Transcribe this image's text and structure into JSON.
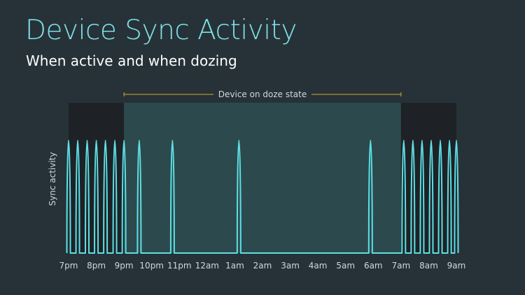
{
  "header": {
    "title": "Device Sync Activity",
    "subtitle": "When active and when dozing"
  },
  "colors": {
    "background": "#263238",
    "title": "#7fe0e6",
    "line": "#5ce0e6",
    "active_band": "#1e2226",
    "doze_band": "#2c4a4d",
    "doze_bracket": "#c9b02a",
    "text": "#cfd8dc"
  },
  "chart_data": {
    "type": "line",
    "title": "Device Sync Activity",
    "subtitle": "When active and when dozing",
    "xlabel": "",
    "ylabel": "Sync activity",
    "x_ticks": [
      "7pm",
      "8pm",
      "9pm",
      "10pm",
      "11pm",
      "12am",
      "1am",
      "2am",
      "3am",
      "4am",
      "5am",
      "6am",
      "7am",
      "8am",
      "9am"
    ],
    "x_unit": "hours after 7pm",
    "xlim": [
      0,
      14
    ],
    "ylim": [
      0,
      1
    ],
    "grid": false,
    "doze_region": {
      "label": "Device on doze state",
      "start": 2.0,
      "end": 12.0
    },
    "series": [
      {
        "name": "",
        "sync_peaks_hours": [
          0.0,
          0.33,
          0.67,
          1.0,
          1.33,
          1.67,
          2.0,
          2.55,
          3.75,
          6.15,
          10.9,
          12.1,
          12.43,
          12.76,
          13.09,
          13.42,
          13.75,
          14.0
        ],
        "peak_value": 1,
        "baseline_value": 0
      }
    ]
  }
}
